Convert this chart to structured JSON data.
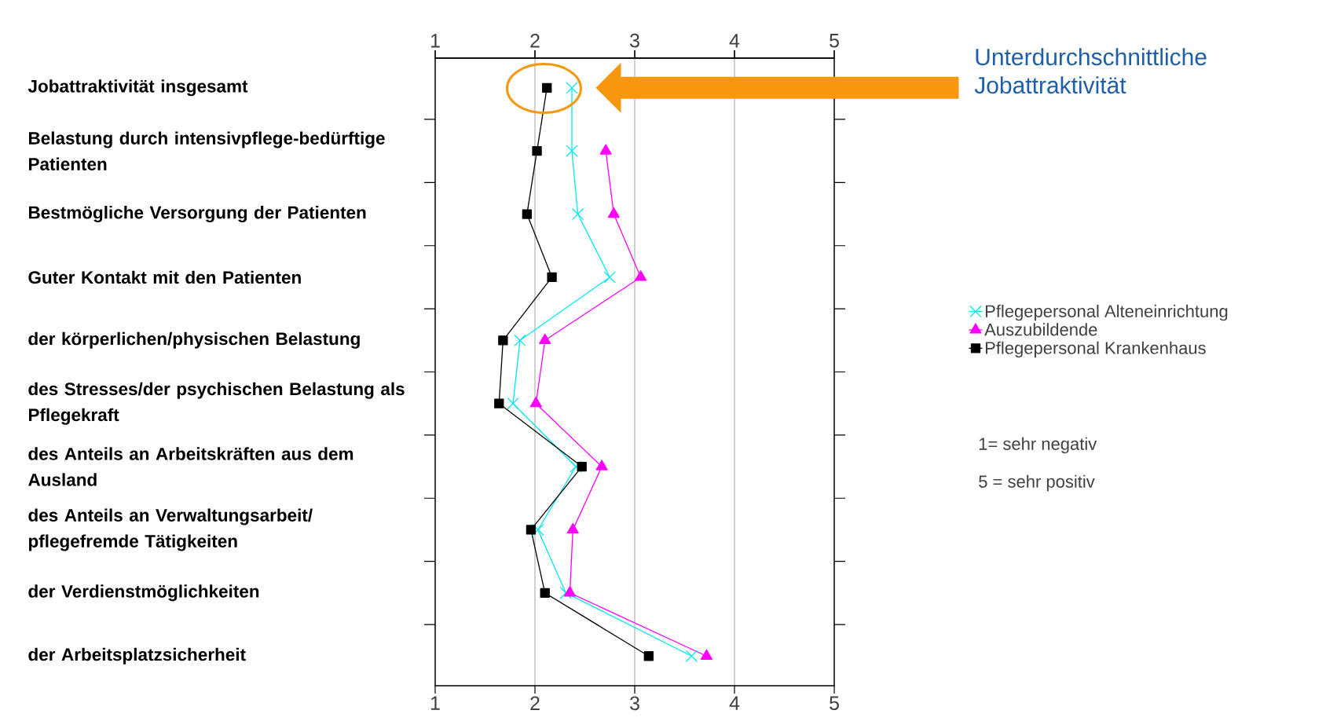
{
  "chart_data": {
    "type": "line",
    "orientation": "horizontal",
    "categories": [
      "Jobattraktivität insgesamt",
      "Belastung durch intensivpflege-bedürftige Patienten",
      "Bestmögliche Versorgung der Patienten",
      "Guter Kontakt mit den Patienten",
      "der körperlichen/physischen Belastung",
      "des Stresses/der psychischen Belastung als Pflegekraft",
      "des Anteils an Arbeitskräften aus dem Ausland",
      "des Anteils an Verwaltungsarbeit/ pflegefremde Tätigkeiten",
      "der Verdienstmöglichkeiten",
      "der Arbeitsplatzsicherheit"
    ],
    "series": [
      {
        "name": "Pflegepersonal Alteneinrichtung",
        "color": "#00e8f0",
        "marker": "cross",
        "values": [
          2.37,
          2.37,
          2.43,
          2.75,
          1.85,
          1.78,
          2.41,
          2.03,
          2.31,
          3.57
        ]
      },
      {
        "name": "Auszubildende",
        "color": "#ff00ff",
        "marker": "triangle",
        "values": [
          null,
          2.71,
          2.79,
          3.06,
          2.1,
          2.01,
          2.67,
          2.38,
          2.35,
          3.72
        ]
      },
      {
        "name": "Pflegepersonal Krankenhaus",
        "color": "#000000",
        "marker": "square",
        "values": [
          2.12,
          2.02,
          1.92,
          2.17,
          1.68,
          1.64,
          2.47,
          1.96,
          2.1,
          3.14
        ]
      }
    ],
    "xlim": [
      1,
      5
    ],
    "xticks": [
      1,
      2,
      3,
      4,
      5
    ],
    "x2lim": [
      1,
      5
    ],
    "x2ticks": [
      1,
      2,
      3,
      4,
      5
    ],
    "grid": "x",
    "legend": "right",
    "line_style": "solid",
    "annotations": [
      "Unterdurchschnittliche Jobattraktivität",
      "1= sehr negativ",
      "5 = sehr positiv"
    ]
  }
}
